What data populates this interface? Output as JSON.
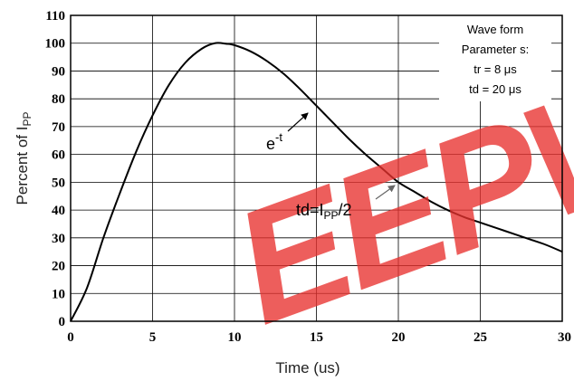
{
  "chart_data": {
    "type": "line",
    "xlabel": "Time (us)",
    "ylabel_main": "Percent of I",
    "ylabel_sub": "PP",
    "xlim": [
      0,
      30
    ],
    "ylim": [
      0,
      110
    ],
    "x_ticks": [
      0,
      5,
      10,
      15,
      20,
      25,
      30
    ],
    "y_ticks": [
      0,
      10,
      20,
      30,
      40,
      50,
      60,
      70,
      80,
      90,
      100,
      110
    ],
    "grid": true,
    "legend_position": "top-right",
    "legend_lines": [
      "Wave form",
      "Parameter s:",
      "tr = 8 μs",
      "td = 20 μs"
    ],
    "series": [
      {
        "x": [
          0,
          1,
          2,
          3,
          4,
          5,
          6,
          7,
          8,
          8.8,
          9.5,
          10,
          11,
          12,
          13,
          14,
          15,
          16,
          17,
          18,
          19,
          20,
          21,
          22,
          23,
          24,
          25,
          26,
          27,
          28,
          29,
          30
        ],
        "y": [
          0,
          12,
          30,
          46,
          61,
          74,
          85,
          93,
          98,
          100,
          99.8,
          99.3,
          97,
          93.5,
          89,
          83.5,
          77.5,
          71.5,
          65.5,
          60,
          55,
          50,
          46.5,
          43,
          40,
          37.5,
          35.5,
          33.5,
          31.5,
          29.5,
          27.5,
          25
        ],
        "color": "#000000"
      }
    ],
    "annotations": {
      "exp": {
        "base": "e",
        "sup": "-t"
      },
      "td": {
        "pre": "td=I",
        "sub": "PP",
        "post": "/2"
      }
    },
    "watermark": "EEPW",
    "watermark_color": "#e8322f"
  }
}
